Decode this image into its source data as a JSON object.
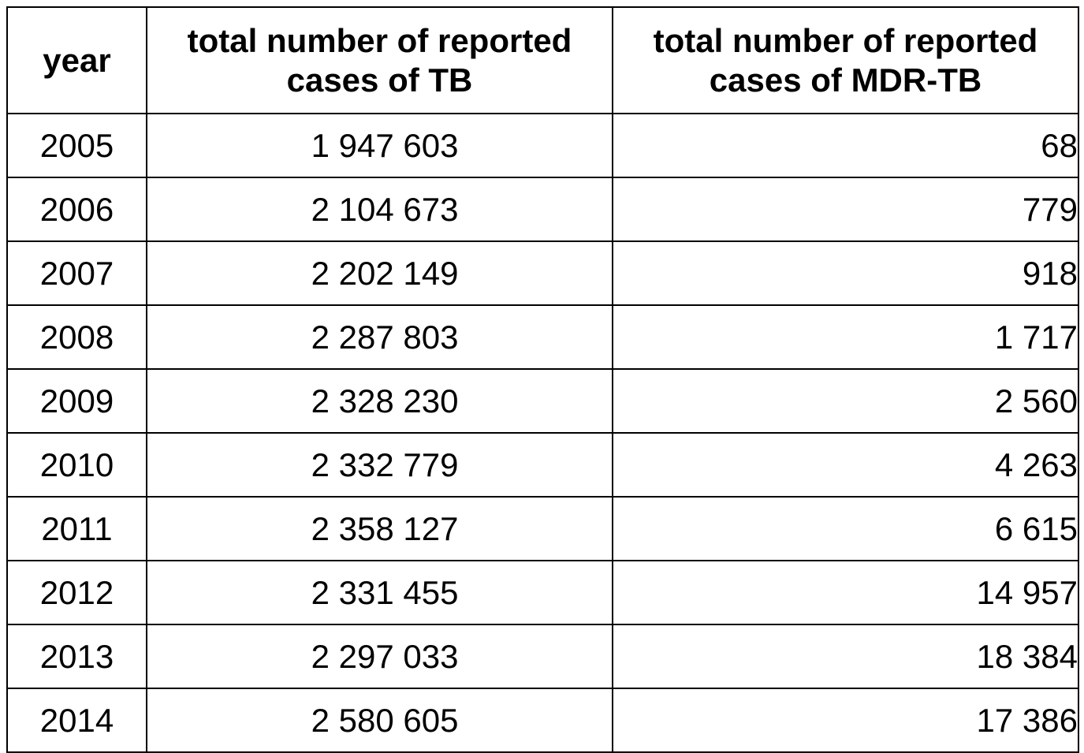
{
  "table": {
    "headers": [
      "year",
      "total number of reported cases of TB",
      "total number of reported cases of MDR-TB"
    ],
    "rows": [
      {
        "year": "2005",
        "tb": "1 947 603",
        "mdr": "68"
      },
      {
        "year": "2006",
        "tb": "2 104 673",
        "mdr": "779"
      },
      {
        "year": "2007",
        "tb": "2 202 149",
        "mdr": "918"
      },
      {
        "year": "2008",
        "tb": "2 287 803",
        "mdr": "1 717"
      },
      {
        "year": "2009",
        "tb": "2 328 230",
        "mdr": "2 560"
      },
      {
        "year": "2010",
        "tb": "2 332 779",
        "mdr": "4 263"
      },
      {
        "year": "2011",
        "tb": "2 358 127",
        "mdr": "6 615"
      },
      {
        "year": "2012",
        "tb": "2 331 455",
        "mdr": "14 957"
      },
      {
        "year": "2013",
        "tb": "2 297 033",
        "mdr": "18 384"
      },
      {
        "year": "2014",
        "tb": "2 580 605",
        "mdr": "17 386"
      }
    ]
  }
}
